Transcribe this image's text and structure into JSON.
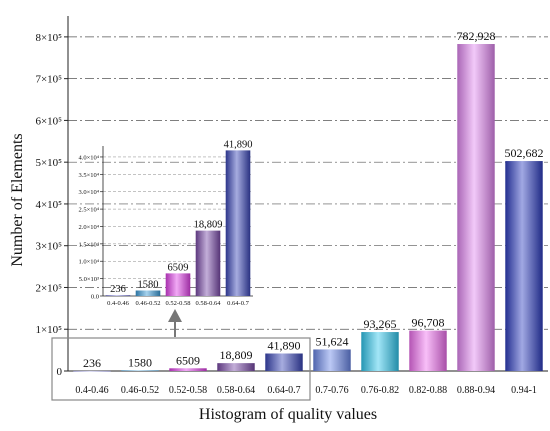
{
  "chart_data": [
    {
      "type": "bar",
      "xlabel": "Histogram of quality values",
      "ylabel": "Number of Elements",
      "categories": [
        "0.4-0.46",
        "0.46-0.52",
        "0.52-0.58",
        "0.58-0.64",
        "0.64-0.7",
        "0.7-0.76",
        "0.76-0.82",
        "0.82-0.88",
        "0.88-0.94",
        "0.94-1"
      ],
      "values": [
        236,
        1580,
        6509,
        18809,
        41890,
        51624,
        93265,
        96708,
        782928,
        502682
      ],
      "value_labels": [
        "236",
        "1580",
        "6509",
        "18,809",
        "41,890",
        "51,624",
        "93,265",
        "96,708",
        "782,928",
        "502,682"
      ],
      "ylim": [
        0,
        850000
      ],
      "yticks": [
        {
          "value": 0,
          "label": "0"
        },
        {
          "value": 100000,
          "label": "1×10⁵"
        },
        {
          "value": 200000,
          "label": "2×10⁵"
        },
        {
          "value": 300000,
          "label": "3×10⁵"
        },
        {
          "value": 400000,
          "label": "4×10⁵"
        },
        {
          "value": 500000,
          "label": "5×10⁵"
        },
        {
          "value": 600000,
          "label": "6×10⁵"
        },
        {
          "value": 700000,
          "label": "7×10⁵"
        },
        {
          "value": 800000,
          "label": "8×10⁵"
        }
      ],
      "grid": true,
      "colors": [
        "#6a6ad0",
        "#3a9ad8",
        "#e040e8",
        "#7a4aa8",
        "#3a46b8",
        "#6a86e8",
        "#30c8ee",
        "#f070f0",
        "#e288f2",
        "#2e3ec0"
      ]
    },
    {
      "type": "bar",
      "inset": true,
      "categories": [
        "0.4-0.46",
        "0.46-0.52",
        "0.52-0.58",
        "0.58-0.64",
        "0.64-0.7"
      ],
      "values": [
        236,
        1580,
        6509,
        18809,
        41890
      ],
      "value_labels": [
        "236",
        "1580",
        "6509",
        "18,809",
        "41,890"
      ],
      "ylim": [
        0,
        42000
      ],
      "yticks": [
        {
          "value": 0,
          "label": "0.0"
        },
        {
          "value": 5000,
          "label": "5.0×10³"
        },
        {
          "value": 10000,
          "label": "1.0×10⁴"
        },
        {
          "value": 15000,
          "label": "1.5×10⁴"
        },
        {
          "value": 20000,
          "label": "2.0×10⁴"
        },
        {
          "value": 25000,
          "label": "2.5×10⁴"
        },
        {
          "value": 30000,
          "label": "3.0×10⁴"
        },
        {
          "value": 35000,
          "label": "3.5×10⁴"
        },
        {
          "value": 40000,
          "label": "4.0×10⁴"
        }
      ],
      "grid": true,
      "colors": [
        "#6a6ad0",
        "#3a9ad8",
        "#e040e8",
        "#7a4aa8",
        "#3a46b8"
      ]
    }
  ]
}
